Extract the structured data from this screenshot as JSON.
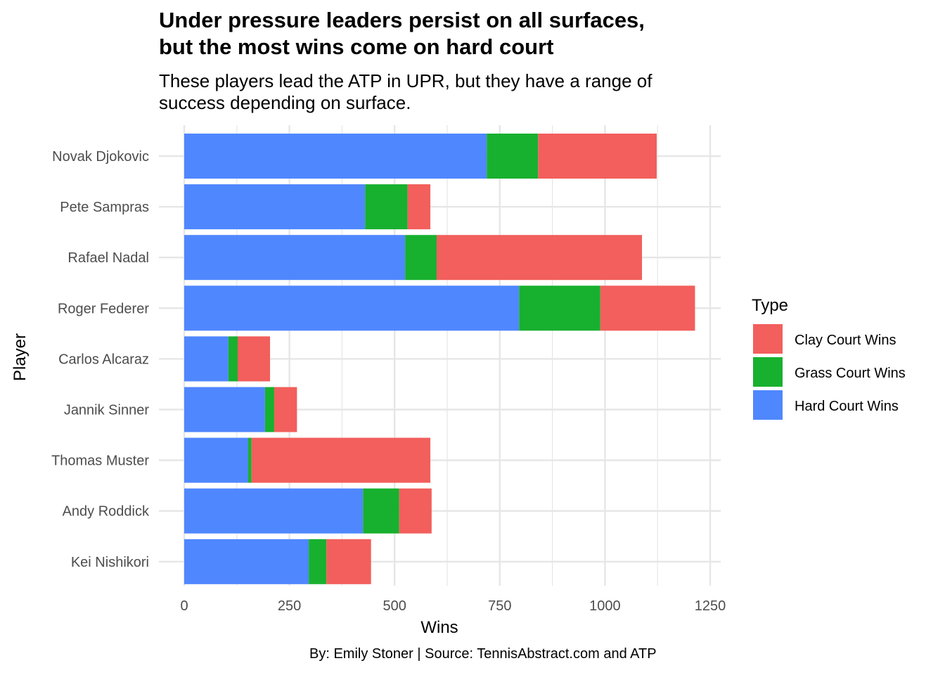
{
  "title_line1": "Under pressure leaders persist on all surfaces,",
  "title_line2": "but the most wins come on hard court",
  "subtitle_line1": "These players lead the ATP in UPR, but they have a range of",
  "subtitle_line2": "success depending on surface.",
  "caption": "By: Emily Stoner | Source: TennisAbstract.com and ATP",
  "colors": {
    "clay": "#F25F5C",
    "grass": "#18B02F",
    "hard": "#4F87FF",
    "grid": "#e6e6e6"
  },
  "chart_data": {
    "type": "bar",
    "orientation": "horizontal",
    "stacked": true,
    "categories": [
      "Novak Djokovic",
      "Pete Sampras",
      "Rafael Nadal",
      "Roger Federer",
      "Carlos Alcaraz",
      "Jannik Sinner",
      "Thomas Muster",
      "Andy Roddick",
      "Kei Nishikori"
    ],
    "series": [
      {
        "name": "Hard Court Wins",
        "key": "hard",
        "values": [
          719,
          430,
          525,
          796,
          105,
          192,
          152,
          425,
          296
        ]
      },
      {
        "name": "Grass Court Wins",
        "key": "grass",
        "values": [
          122,
          101,
          75,
          193,
          22,
          22,
          8,
          86,
          42
        ]
      },
      {
        "name": "Clay Court Wins",
        "key": "clay",
        "values": [
          282,
          54,
          488,
          225,
          77,
          54,
          425,
          77,
          106
        ]
      }
    ],
    "xlabel": "Wins",
    "ylabel": "Player",
    "xticks": [
      0,
      250,
      500,
      750,
      1000,
      1250
    ],
    "xlim": [
      0,
      1275
    ],
    "grid": true,
    "legend": {
      "title": "Type",
      "position": "right",
      "items": [
        {
          "label": "Clay Court Wins",
          "key": "clay"
        },
        {
          "label": "Grass Court Wins",
          "key": "grass"
        },
        {
          "label": "Hard Court Wins",
          "key": "hard"
        }
      ]
    }
  }
}
